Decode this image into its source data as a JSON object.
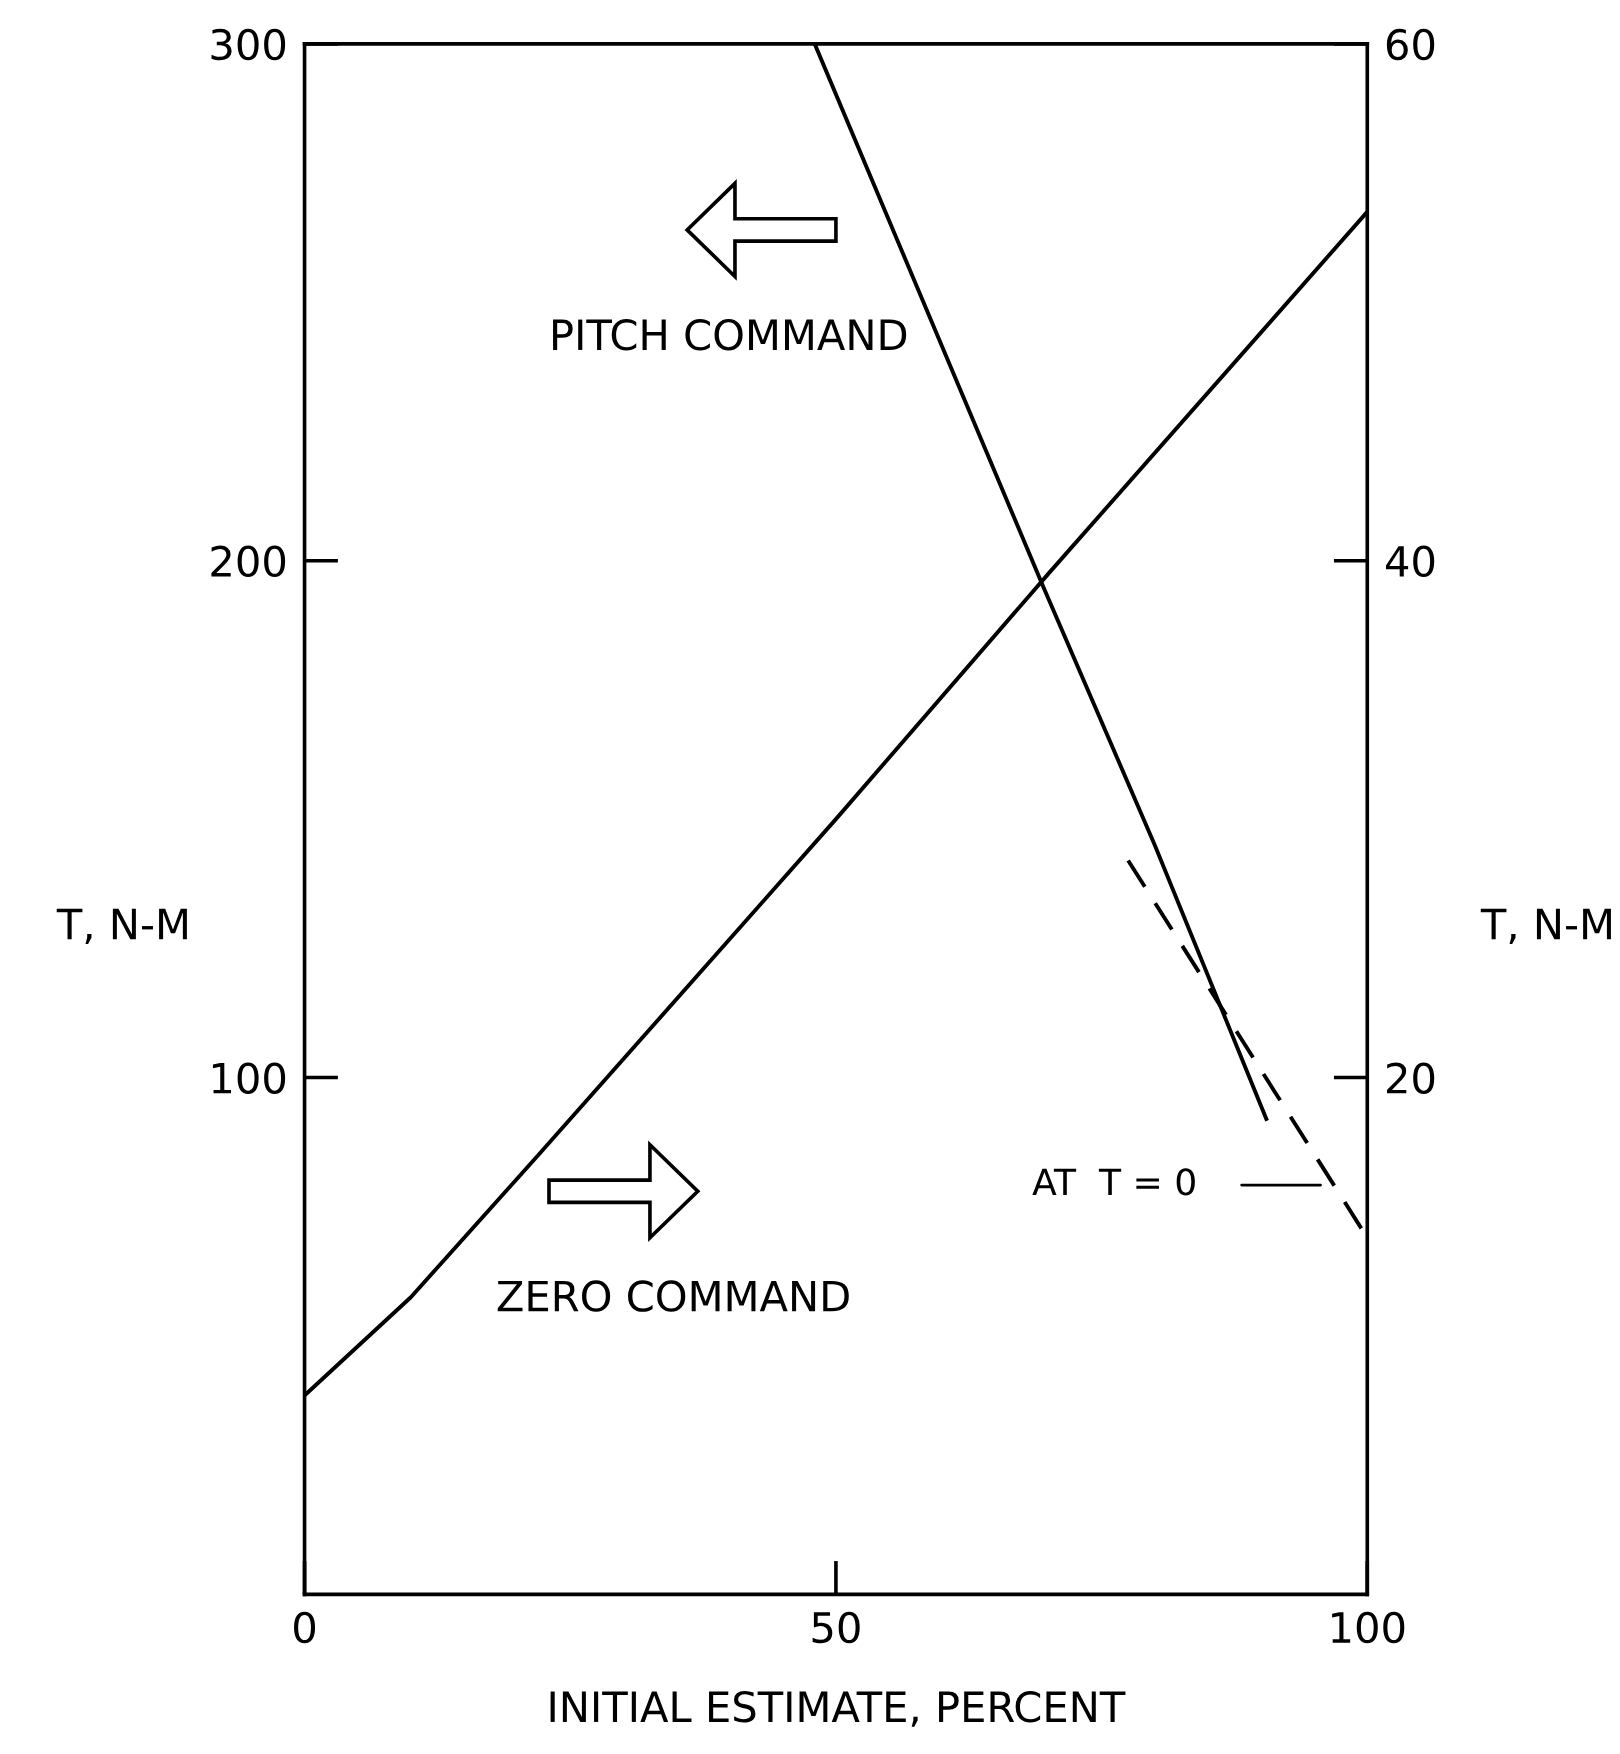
{
  "chart_data": {
    "type": "line",
    "xlabel": "INITIAL ESTIMATE, PERCENT",
    "ylabel": "T, N-M",
    "y2label": "T, N-M",
    "xlim": [
      0,
      100
    ],
    "xticks": [
      0,
      50,
      100
    ],
    "ylim": [
      0,
      300
    ],
    "yticks": [
      100,
      200,
      300
    ],
    "y2lim": [
      0,
      60
    ],
    "y2ticks": [
      20,
      40,
      60
    ],
    "series": [
      {
        "name": "PITCH COMMAND",
        "color": "#000000",
        "x": [
          48,
          69.5,
          80,
          90.5
        ],
        "values": [
          300,
          195,
          145,
          92
        ],
        "line_style": "solid"
      },
      {
        "name": "ZERO COMMAND",
        "color": "#000000",
        "axis": "y2",
        "x": [
          0,
          10,
          22,
          50,
          70,
          100
        ],
        "values": [
          7.7,
          11.5,
          17,
          30,
          39.5,
          53.5
        ],
        "line_style": "solid"
      },
      {
        "color": "#000000",
        "x": [
          77.5,
          100
        ],
        "values": [
          142,
          69
        ],
        "line_style": "dashed"
      }
    ],
    "annotations": [
      "AT  T = 0"
    ],
    "grid": false,
    "legend": "left",
    "marker": "none"
  }
}
